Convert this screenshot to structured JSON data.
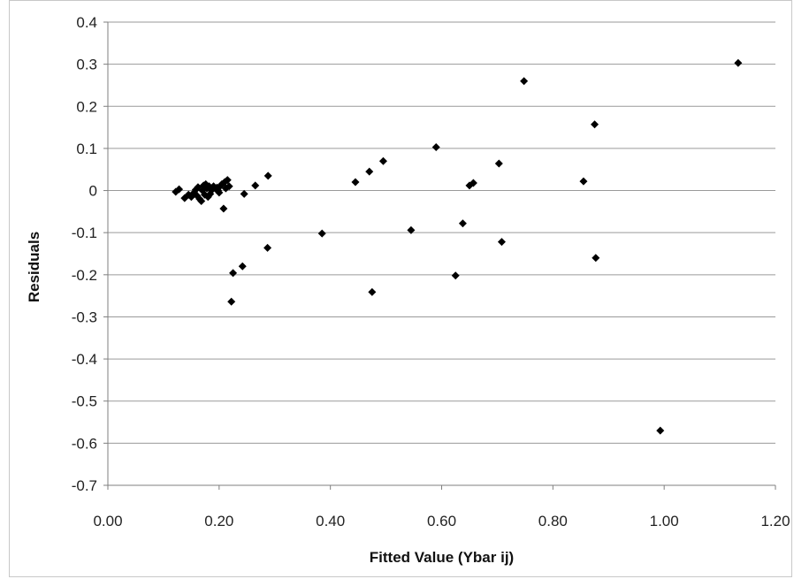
{
  "chart_data": {
    "type": "scatter",
    "title": "",
    "xlabel": "Fitted Value (Ybar ij)",
    "ylabel": "Residuals",
    "xlim": [
      0,
      1.2
    ],
    "ylim": [
      -0.7,
      0.4
    ],
    "x_ticks": [
      "0.00",
      "0.20",
      "0.40",
      "0.60",
      "0.80",
      "1.00",
      "1.20"
    ],
    "y_ticks": [
      "0.4",
      "0.3",
      "0.2",
      "0.1",
      "0",
      "-0.1",
      "-0.2",
      "-0.3",
      "-0.4",
      "-0.5",
      "-0.6",
      "-0.7"
    ],
    "grid": "horizontal",
    "marker": "diamond",
    "marker_color": "#000000",
    "points": [
      {
        "x": 0.122,
        "y": -0.003
      },
      {
        "x": 0.128,
        "y": 0.003
      },
      {
        "x": 0.138,
        "y": -0.018
      },
      {
        "x": 0.145,
        "y": -0.01
      },
      {
        "x": 0.15,
        "y": -0.015
      },
      {
        "x": 0.155,
        "y": -0.005
      },
      {
        "x": 0.158,
        "y": 0.002
      },
      {
        "x": 0.16,
        "y": -0.012
      },
      {
        "x": 0.162,
        "y": 0.008
      },
      {
        "x": 0.165,
        "y": -0.02
      },
      {
        "x": 0.168,
        "y": -0.025
      },
      {
        "x": 0.17,
        "y": 0.0
      },
      {
        "x": 0.172,
        "y": 0.012
      },
      {
        "x": 0.174,
        "y": -0.01
      },
      {
        "x": 0.176,
        "y": 0.015
      },
      {
        "x": 0.178,
        "y": 0.005
      },
      {
        "x": 0.18,
        "y": -0.015
      },
      {
        "x": 0.182,
        "y": 0.01
      },
      {
        "x": 0.184,
        "y": -0.008
      },
      {
        "x": 0.186,
        "y": 0.0
      },
      {
        "x": 0.19,
        "y": 0.01
      },
      {
        "x": 0.193,
        "y": 0.005
      },
      {
        "x": 0.196,
        "y": 0.007
      },
      {
        "x": 0.198,
        "y": 0.0
      },
      {
        "x": 0.2,
        "y": -0.005
      },
      {
        "x": 0.203,
        "y": 0.012
      },
      {
        "x": 0.205,
        "y": 0.015
      },
      {
        "x": 0.208,
        "y": -0.043
      },
      {
        "x": 0.21,
        "y": 0.02
      },
      {
        "x": 0.212,
        "y": 0.005
      },
      {
        "x": 0.215,
        "y": 0.025
      },
      {
        "x": 0.218,
        "y": 0.01
      },
      {
        "x": 0.222,
        "y": -0.264
      },
      {
        "x": 0.225,
        "y": -0.196
      },
      {
        "x": 0.242,
        "y": -0.18
      },
      {
        "x": 0.245,
        "y": -0.008
      },
      {
        "x": 0.265,
        "y": 0.012
      },
      {
        "x": 0.287,
        "y": -0.136
      },
      {
        "x": 0.288,
        "y": 0.035
      },
      {
        "x": 0.385,
        "y": -0.102
      },
      {
        "x": 0.445,
        "y": 0.02
      },
      {
        "x": 0.47,
        "y": 0.045
      },
      {
        "x": 0.475,
        "y": -0.241
      },
      {
        "x": 0.495,
        "y": 0.07
      },
      {
        "x": 0.545,
        "y": -0.094
      },
      {
        "x": 0.59,
        "y": 0.103
      },
      {
        "x": 0.625,
        "y": -0.202
      },
      {
        "x": 0.638,
        "y": -0.078
      },
      {
        "x": 0.65,
        "y": 0.012
      },
      {
        "x": 0.657,
        "y": 0.018
      },
      {
        "x": 0.703,
        "y": 0.064
      },
      {
        "x": 0.708,
        "y": -0.122
      },
      {
        "x": 0.748,
        "y": 0.26
      },
      {
        "x": 0.855,
        "y": 0.022
      },
      {
        "x": 0.875,
        "y": 0.157
      },
      {
        "x": 0.877,
        "y": -0.16
      },
      {
        "x": 0.993,
        "y": -0.57
      },
      {
        "x": 1.133,
        "y": 0.303
      }
    ]
  }
}
